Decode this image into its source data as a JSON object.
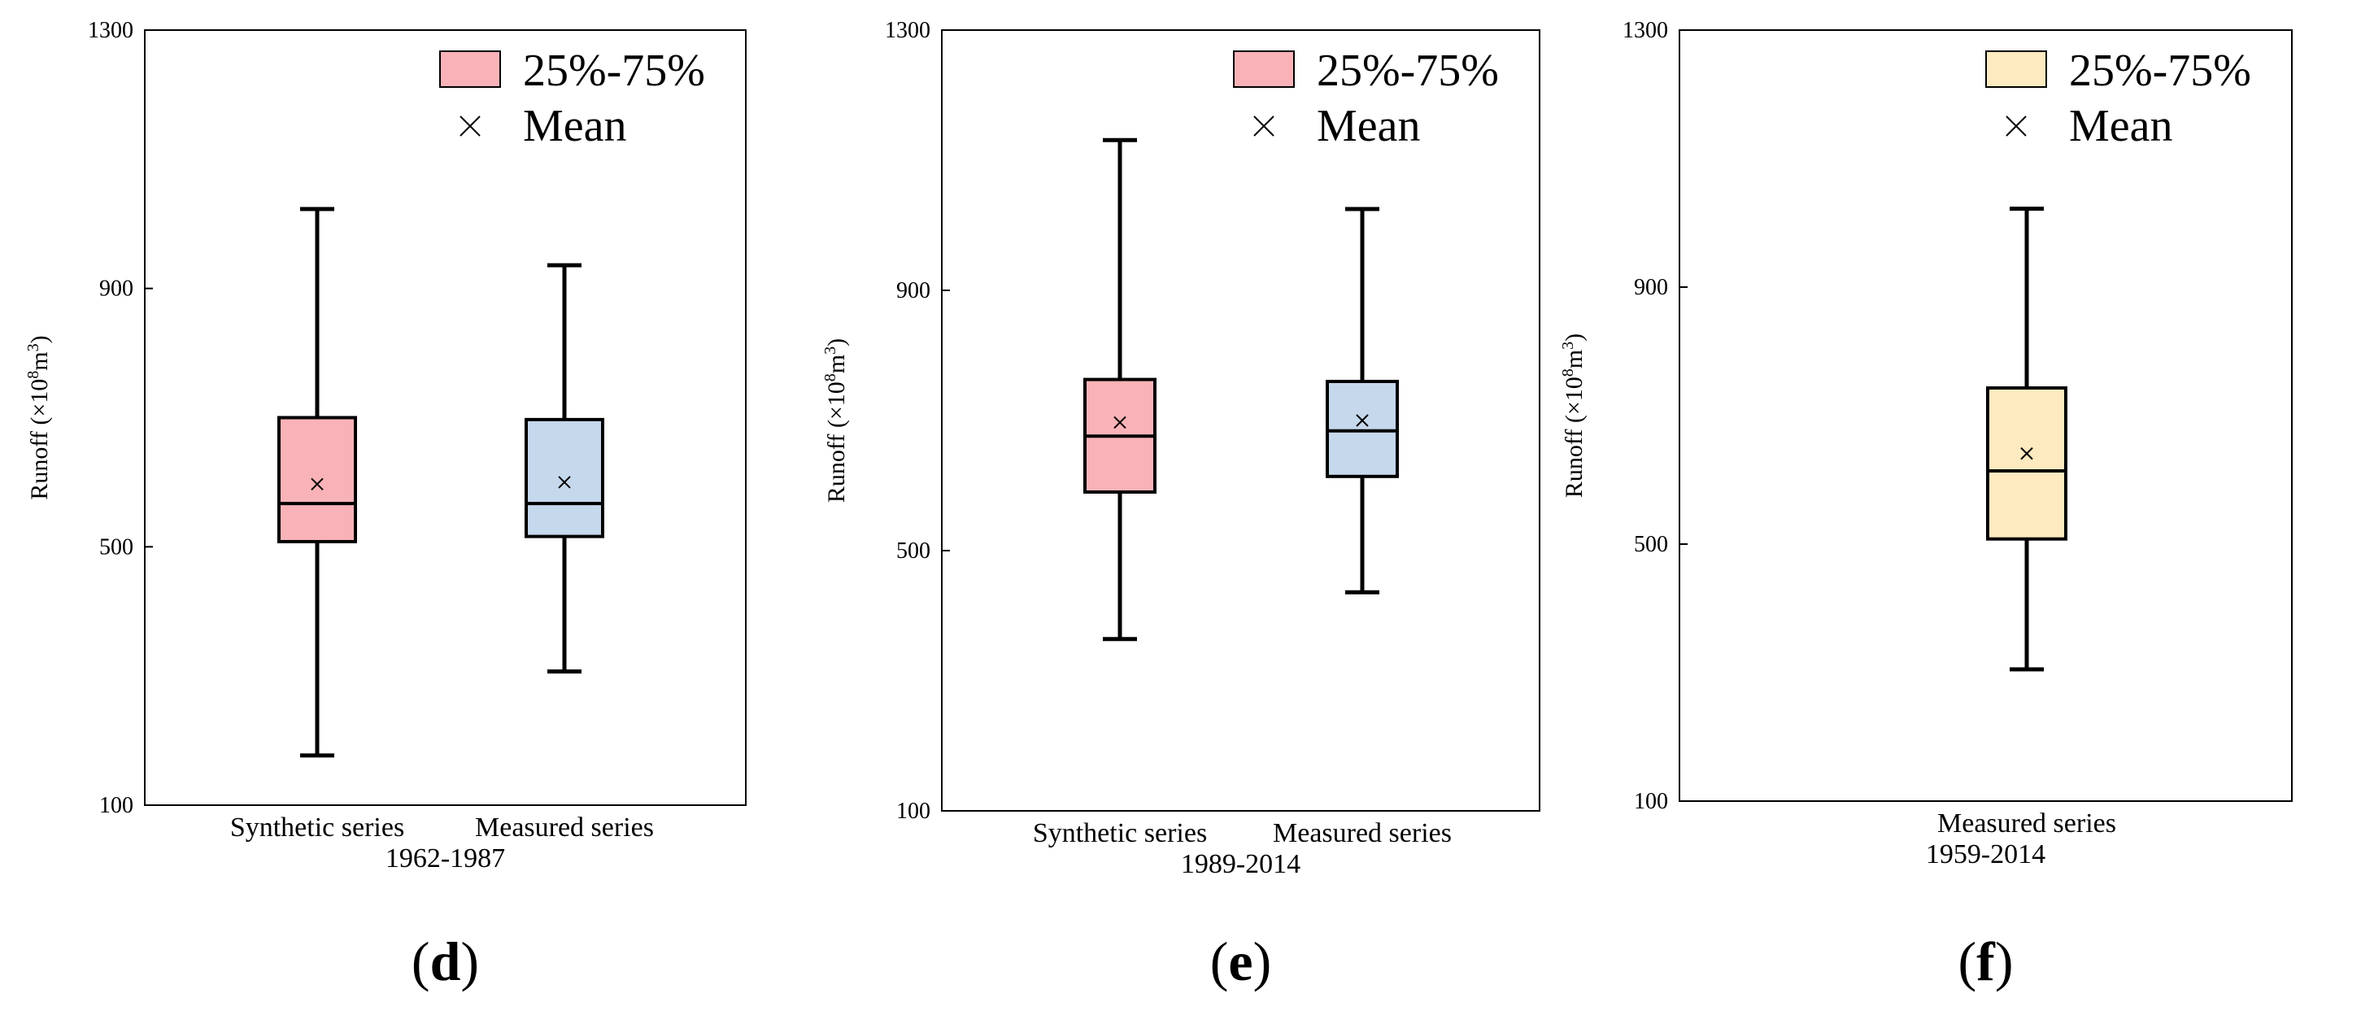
{
  "chart_data": [
    {
      "type": "boxplot",
      "panel_label": "d",
      "period": "1962-1987",
      "ylabel": "Runoff (×10⁸m³)",
      "ylim": [
        100,
        1300
      ],
      "yticks": [
        100,
        500,
        900,
        1300
      ],
      "legend": [
        "25%-75%",
        "Mean"
      ],
      "series": [
        {
          "name": "Synthetic series",
          "color": "#f9b3b8",
          "whisker_low": 177,
          "q1": 508,
          "median": 567,
          "q3": 700,
          "whisker_high": 1023,
          "mean": 597
        },
        {
          "name": "Measured series",
          "color": "#c5d8ec",
          "whisker_low": 307,
          "q1": 516,
          "median": 567,
          "q3": 697,
          "whisker_high": 936,
          "mean": 600
        }
      ]
    },
    {
      "type": "boxplot",
      "panel_label": "e",
      "period": "1989-2014",
      "ylabel": "Runoff (×10⁸m³)",
      "ylim": [
        100,
        1300
      ],
      "yticks": [
        100,
        500,
        900,
        1300
      ],
      "legend": [
        "25%-75%",
        "Mean"
      ],
      "series": [
        {
          "name": "Synthetic series",
          "color": "#f9b3b8",
          "whisker_low": 364,
          "q1": 590,
          "median": 676,
          "q3": 763,
          "whisker_high": 1131,
          "mean": 697
        },
        {
          "name": "Measured series",
          "color": "#c5d8ec",
          "whisker_low": 436,
          "q1": 614,
          "median": 684,
          "q3": 760,
          "whisker_high": 1025,
          "mean": 700
        }
      ]
    },
    {
      "type": "boxplot",
      "panel_label": "f",
      "period": "1959-2014",
      "ylabel": "Runoff (×10⁸m³)",
      "ylim": [
        100,
        1300
      ],
      "yticks": [
        100,
        500,
        900,
        1300
      ],
      "legend": [
        "25%-75%",
        "Mean"
      ],
      "series": [
        {
          "name": "Measured series",
          "color": "#fdeac0",
          "whisker_low": 305,
          "q1": 508,
          "median": 614,
          "q3": 743,
          "whisker_high": 1022,
          "mean": 641
        }
      ]
    }
  ]
}
